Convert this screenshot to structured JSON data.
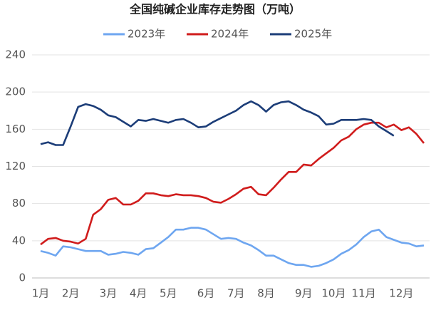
{
  "chart_data": {
    "type": "line",
    "title": "全国纯碱企业库存走势图（万吨）",
    "categories": [
      "1月",
      null,
      null,
      null,
      "2月",
      null,
      null,
      null,
      null,
      "3月",
      null,
      null,
      null,
      "4月",
      null,
      null,
      null,
      "5月",
      null,
      null,
      null,
      null,
      "6月",
      null,
      null,
      null,
      "7月",
      null,
      null,
      null,
      "8月",
      null,
      null,
      null,
      null,
      "9月",
      null,
      null,
      null,
      "10月",
      null,
      null,
      null,
      "11月",
      null,
      null,
      null,
      null,
      "12月",
      null,
      null,
      null
    ],
    "series": [
      {
        "name": "2023年",
        "color": "#6ea6f0",
        "values": [
          29,
          27,
          24,
          34,
          33,
          31,
          29,
          29,
          29,
          25,
          26,
          28,
          27,
          25,
          31,
          32,
          38,
          44,
          52,
          52,
          54,
          54,
          52,
          47,
          42,
          43,
          42,
          38,
          35,
          30,
          24,
          24,
          20,
          16,
          14,
          14,
          12,
          13,
          16,
          20,
          26,
          30,
          36,
          44,
          50,
          52,
          44,
          41,
          38,
          37,
          34,
          35
        ]
      },
      {
        "name": "2024年",
        "color": "#d01c1c",
        "values": [
          36,
          42,
          43,
          40,
          39,
          37,
          42,
          68,
          74,
          84,
          86,
          79,
          79,
          83,
          91,
          91,
          89,
          88,
          90,
          89,
          89,
          88,
          86,
          82,
          81,
          85,
          90,
          96,
          98,
          90,
          89,
          97,
          106,
          114,
          114,
          122,
          121,
          128,
          134,
          140,
          148,
          152,
          160,
          165,
          167,
          167,
          162,
          165,
          159,
          162,
          155,
          145
        ]
      },
      {
        "name": "2025年",
        "color": "#1c3d78",
        "values": [
          144,
          146,
          143,
          143,
          163,
          184,
          187,
          185,
          181,
          175,
          173,
          168,
          163,
          170,
          169,
          171,
          169,
          167,
          170,
          171,
          167,
          162,
          163,
          168,
          172,
          176,
          180,
          186,
          190,
          186,
          179,
          186,
          189,
          190,
          186,
          181,
          178,
          174,
          165,
          166,
          170,
          170,
          170,
          171,
          170,
          163,
          158,
          153,
          null,
          null,
          null,
          null
        ]
      }
    ],
    "ylim": [
      0,
      240
    ],
    "yticks": [
      0,
      40,
      80,
      120,
      160,
      200,
      240
    ],
    "grid": true
  }
}
